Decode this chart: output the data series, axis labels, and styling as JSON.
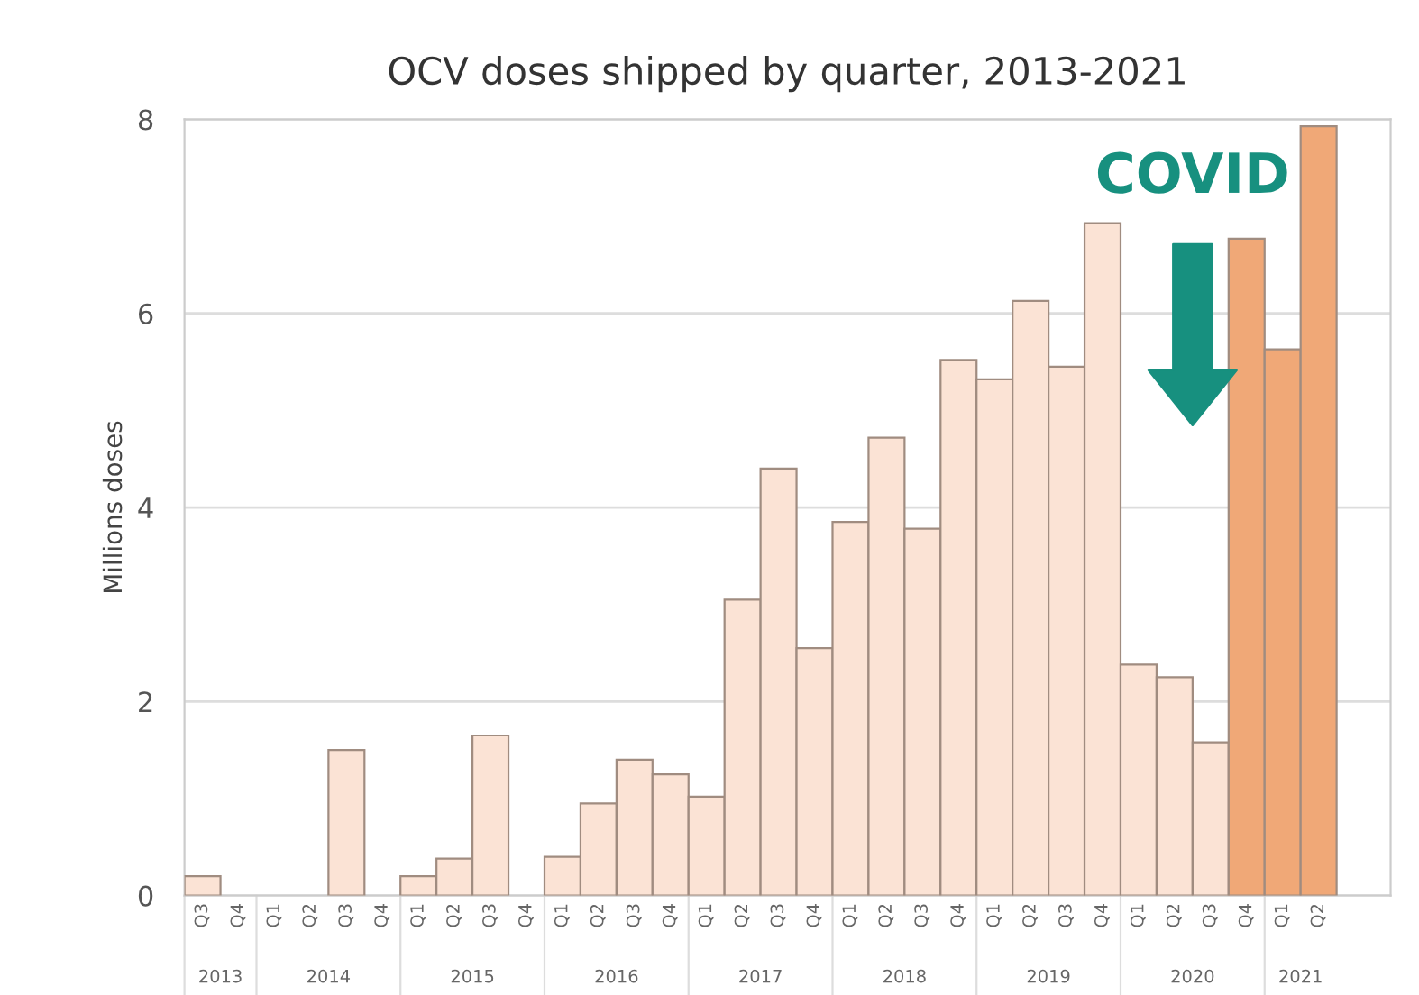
{
  "chart_data": {
    "type": "bar",
    "title": "OCV doses shipped by quarter, 2013-2021",
    "ylabel": "Millions doses",
    "categories": [
      "Q3",
      "Q4",
      "Q1",
      "Q2",
      "Q3",
      "Q4",
      "Q1",
      "Q2",
      "Q3",
      "Q4",
      "Q1",
      "Q2",
      "Q3",
      "Q4",
      "Q1",
      "Q2",
      "Q3",
      "Q4",
      "Q1",
      "Q2",
      "Q3",
      "Q4",
      "Q1",
      "Q2",
      "Q3",
      "Q4",
      "Q1",
      "Q2",
      "Q3",
      "Q4",
      "Q1",
      "Q2"
    ],
    "values": [
      0.2,
      0,
      0,
      0,
      1.5,
      0,
      0.2,
      0.38,
      1.65,
      0,
      0.4,
      0.95,
      1.4,
      1.25,
      1.02,
      3.05,
      4.4,
      2.55,
      3.85,
      4.72,
      3.78,
      5.52,
      5.32,
      6.13,
      5.45,
      6.93,
      2.38,
      2.25,
      1.58,
      6.77,
      5.63,
      7.93
    ],
    "colors": [
      "#fbe3d5",
      "#fbe3d5",
      "#fbe3d5",
      "#fbe3d5",
      "#fbe3d5",
      "#fbe3d5",
      "#fbe3d5",
      "#fbe3d5",
      "#fbe3d5",
      "#fbe3d5",
      "#fbe3d5",
      "#fbe3d5",
      "#fbe3d5",
      "#fbe3d5",
      "#fbe3d5",
      "#fbe3d5",
      "#fbe3d5",
      "#fbe3d5",
      "#fbe3d5",
      "#fbe3d5",
      "#fbe3d5",
      "#fbe3d5",
      "#fbe3d5",
      "#fbe3d5",
      "#fbe3d5",
      "#fbe3d5",
      "#fbe3d5",
      "#fbe3d5",
      "#fbe3d5",
      "#f0a877",
      "#f0a877",
      "#f0a877"
    ],
    "ylim": [
      0,
      8
    ],
    "yticks": [
      0,
      2,
      4,
      6,
      8
    ],
    "grid": "y",
    "annotations": [
      "COVID",
      "2013",
      "2014",
      "2015",
      "2016",
      "2017",
      "2018",
      "2019",
      "2020",
      "2021"
    ]
  }
}
